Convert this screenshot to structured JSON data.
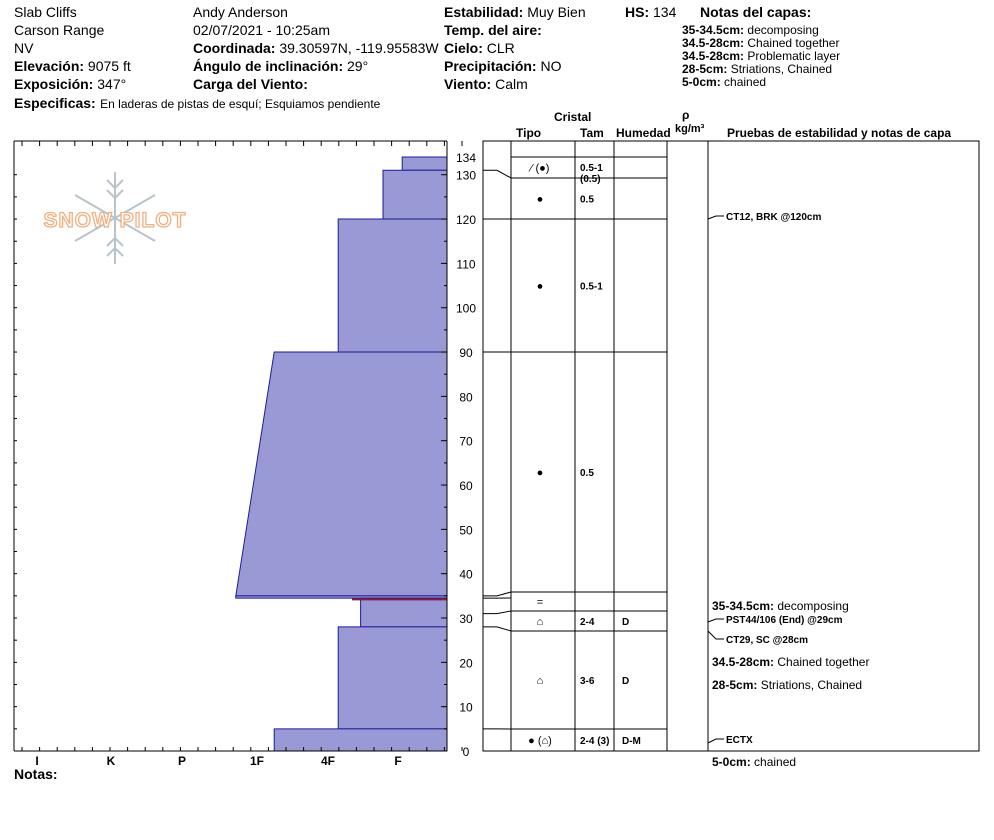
{
  "site": {
    "name": "Slab Cliffs",
    "range": "Carson Range",
    "state": "NV",
    "elevation_label": "Elevación:",
    "elevation_value": "9075 ft",
    "aspect_label": "Exposición:",
    "aspect_value": "347°",
    "specifics_label": "Especificas:",
    "specifics_value": "En laderas de pistas de esquí; Esquiamos pendiente"
  },
  "observer": {
    "name": "Andy Anderson",
    "datetime": "02/07/2021 - 10:25am",
    "coord_label": "Coordinada:",
    "coord_value": "39.30597N, -119.95583W",
    "slope_label": "Ángulo de inclinación:",
    "slope_value": "29°",
    "wind_load_label": "Carga del Viento:"
  },
  "conditions": {
    "stability_label": "Estabilidad:",
    "stability_value": "Muy Bien",
    "air_temp_label": "Temp. del aire:",
    "sky_label": "Cielo:",
    "sky_value": "CLR",
    "precip_label": "Precipitación:",
    "precip_value": "NO",
    "wind_label": "Viento:",
    "wind_value": "Calm",
    "hs_label": "HS:",
    "hs_value": "134"
  },
  "layer_notes": {
    "title": "Notas del capas:",
    "items": [
      {
        "range": "35-34.5cm:",
        "text": "decomposing"
      },
      {
        "range": "34.5-28cm:",
        "text": "Chained together"
      },
      {
        "range": "34.5-28cm:",
        "text": "Problematic layer"
      },
      {
        "range": "28-5cm:",
        "text": "Striations, Chained"
      },
      {
        "range": "5-0cm:",
        "text": "chained"
      }
    ]
  },
  "logo_text": "SNOW PILOT",
  "notes_label": "Notas:",
  "table_headers": {
    "cristal": "Cristal",
    "tipo": "Tipo",
    "tam": "Tam",
    "humedad": "Humedad",
    "rho": "ρ",
    "density_unit": "kg/m³",
    "tests": "Pruebas de estabilidad y notas de capa"
  },
  "chart_data": {
    "type": "bar",
    "orientation": "horizontal",
    "hardness_scale": [
      "I",
      "K",
      "P",
      "1F",
      "4F",
      "F"
    ],
    "y_ticks": [
      0,
      10,
      20,
      30,
      40,
      50,
      60,
      70,
      80,
      90,
      100,
      110,
      120,
      130,
      134
    ],
    "ylim": [
      0,
      134
    ],
    "hardness_profile": [
      {
        "bottom": 131,
        "top": 134,
        "hardness_bottom": 0.7,
        "hardness_top": 0.7
      },
      {
        "bottom": 120,
        "top": 131,
        "hardness_bottom": 1.0,
        "hardness_top": 1.0
      },
      {
        "bottom": 90,
        "top": 120,
        "hardness_bottom": 1.7,
        "hardness_top": 1.7
      },
      {
        "bottom": 35,
        "top": 90,
        "hardness_bottom": 3.3,
        "hardness_top": 2.7
      },
      {
        "bottom": 34.5,
        "top": 35,
        "hardness_bottom": 3.3,
        "hardness_top": 3.3
      },
      {
        "bottom": 28,
        "top": 34.5,
        "hardness_bottom": 1.35,
        "hardness_top": 1.35
      },
      {
        "bottom": 5,
        "top": 28,
        "hardness_bottom": 1.7,
        "hardness_top": 1.7
      },
      {
        "bottom": 0,
        "top": 5,
        "hardness_bottom": 2.7,
        "hardness_top": 2.7
      }
    ],
    "weak_layer_depth": 34.2,
    "layers": [
      {
        "top": 134,
        "bottom": 131,
        "symbol": "⁄ (●)",
        "size": "0.5-1",
        "size_sub": "(0.5)",
        "moisture": ""
      },
      {
        "top": 131,
        "bottom": 120,
        "symbol": "●",
        "size": "0.5",
        "size_sub": "",
        "moisture": ""
      },
      {
        "top": 120,
        "bottom": 90,
        "symbol": "●",
        "size": "0.5-1",
        "size_sub": "",
        "moisture": ""
      },
      {
        "top": 90,
        "bottom": 35,
        "symbol": "●",
        "size": "0.5",
        "size_sub": "",
        "moisture": ""
      },
      {
        "top": 35,
        "bottom": 31,
        "symbol": "=",
        "size": "",
        "size_sub": "",
        "moisture": ""
      },
      {
        "top": 31,
        "bottom": 27.5,
        "symbol": "⌂",
        "size": "2-4",
        "size_sub": "",
        "moisture": "D"
      },
      {
        "top": 27.5,
        "bottom": 5,
        "symbol": "⌂",
        "size": "3-6",
        "size_sub": "",
        "moisture": "D"
      },
      {
        "top": 5,
        "bottom": 0,
        "symbol": "● (⌂)",
        "size": "2-4 (3)",
        "size_sub": "",
        "moisture": "D-M"
      }
    ],
    "test_notes": [
      {
        "depth": 120,
        "text": "CT12, BRK @120cm",
        "bold": true
      },
      {
        "depth": 35,
        "label": "35-34.5cm:",
        "text": "decomposing"
      },
      {
        "depth": 29,
        "text": "PST44/106 (End) @29cm",
        "bold": true
      },
      {
        "depth": 28,
        "text": "CT29, SC @28cm",
        "bold": true
      },
      {
        "depth": 22,
        "label": "34.5-28cm:",
        "text": "Chained together"
      },
      {
        "depth": 16,
        "label": "28-5cm:",
        "text": "Striations, Chained"
      },
      {
        "depth": 2,
        "text": "ECTX",
        "bold": true
      },
      {
        "depth": -2,
        "label": "5-0cm:",
        "text": "chained"
      }
    ]
  }
}
